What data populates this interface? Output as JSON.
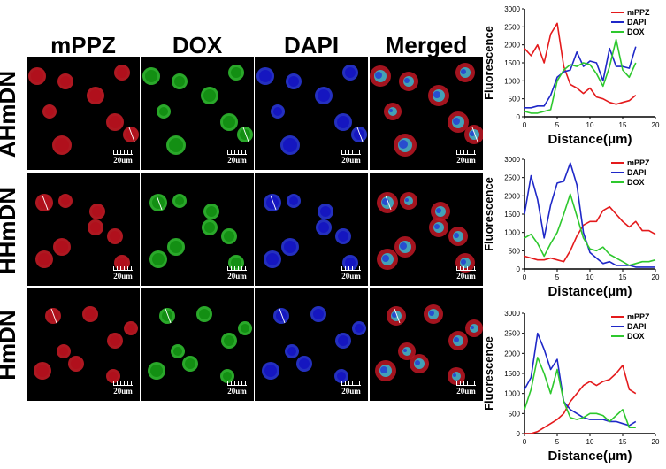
{
  "figure": {
    "columns": [
      "mPPZ",
      "DOX",
      "DAPI",
      "Merged"
    ],
    "rows": [
      "AHmDN",
      "HHmDN",
      "HmDN"
    ],
    "scale_bar_label": "20um"
  },
  "chart_data": [
    {
      "type": "line",
      "xlabel": "Distance(μm)",
      "ylabel": "Fluorescence",
      "xlim": [
        0,
        20
      ],
      "ylim": [
        0,
        3000
      ],
      "xticks": [
        0,
        5,
        10,
        15,
        20
      ],
      "yticks": [
        0,
        500,
        1000,
        1500,
        2000,
        2500,
        3000
      ],
      "legend": "top-right",
      "series": [
        {
          "name": "mPPZ",
          "color": "#e41a1c",
          "x": [
            0,
            1,
            2,
            3,
            4,
            5,
            6,
            7,
            8,
            9,
            10,
            11,
            12,
            13,
            14,
            15,
            16,
            17
          ],
          "y": [
            1900,
            1700,
            2000,
            1500,
            2300,
            2600,
            1400,
            900,
            800,
            650,
            800,
            550,
            500,
            400,
            350,
            400,
            450,
            600
          ]
        },
        {
          "name": "DAPI",
          "color": "#1f28c8",
          "x": [
            0,
            1,
            2,
            3,
            4,
            5,
            6,
            7,
            8,
            9,
            10,
            11,
            12,
            13,
            14,
            15,
            16,
            17
          ],
          "y": [
            250,
            250,
            300,
            300,
            600,
            1100,
            1250,
            1300,
            1800,
            1400,
            1550,
            1500,
            1000,
            1900,
            1400,
            1400,
            1350,
            1950
          ]
        },
        {
          "name": "DOX",
          "color": "#2ec82e",
          "x": [
            0,
            1,
            2,
            3,
            4,
            5,
            6,
            7,
            8,
            9,
            10,
            11,
            12,
            13,
            14,
            15,
            16,
            17
          ],
          "y": [
            150,
            100,
            100,
            150,
            200,
            1000,
            1300,
            1450,
            1400,
            1500,
            1450,
            1200,
            850,
            1400,
            2150,
            1300,
            1100,
            1500
          ]
        }
      ]
    },
    {
      "type": "line",
      "xlabel": "Distance(μm)",
      "ylabel": "Fluorescence",
      "xlim": [
        0,
        20
      ],
      "ylim": [
        0,
        3000
      ],
      "xticks": [
        0,
        5,
        10,
        15,
        20
      ],
      "yticks": [
        0,
        500,
        1000,
        1500,
        2000,
        2500,
        3000
      ],
      "legend": "top-right",
      "series": [
        {
          "name": "mPPZ",
          "color": "#e41a1c",
          "x": [
            0,
            1,
            2,
            3,
            4,
            5,
            6,
            7,
            8,
            9,
            10,
            11,
            12,
            13,
            14,
            15,
            16,
            17,
            18,
            19,
            20
          ],
          "y": [
            350,
            300,
            250,
            250,
            300,
            250,
            200,
            500,
            900,
            1200,
            1300,
            1300,
            1600,
            1700,
            1500,
            1300,
            1150,
            1300,
            1050,
            1050,
            950
          ]
        },
        {
          "name": "DAPI",
          "color": "#1f28c8",
          "x": [
            0,
            1,
            2,
            3,
            4,
            5,
            6,
            7,
            8,
            9,
            10,
            11,
            12,
            13,
            14,
            15,
            16,
            17,
            18,
            19,
            20
          ],
          "y": [
            1500,
            2550,
            1900,
            850,
            1750,
            2350,
            2400,
            2900,
            2300,
            1000,
            450,
            300,
            150,
            200,
            100,
            100,
            100,
            50,
            50,
            50,
            50
          ]
        },
        {
          "name": "DOX",
          "color": "#2ec82e",
          "x": [
            0,
            1,
            2,
            3,
            4,
            5,
            6,
            7,
            8,
            9,
            10,
            11,
            12,
            13,
            14,
            15,
            16,
            17,
            18,
            19,
            20
          ],
          "y": [
            850,
            950,
            700,
            350,
            700,
            1000,
            1500,
            2050,
            1450,
            850,
            550,
            500,
            600,
            400,
            300,
            200,
            100,
            150,
            200,
            200,
            250
          ]
        }
      ]
    },
    {
      "type": "line",
      "xlabel": "Distance(μm)",
      "ylabel": "Fluorescence",
      "xlim": [
        0,
        20
      ],
      "ylim": [
        0,
        3000
      ],
      "xticks": [
        0,
        5,
        10,
        15,
        20
      ],
      "yticks": [
        0,
        500,
        1000,
        1500,
        2000,
        2500,
        3000
      ],
      "legend": "top-right",
      "series": [
        {
          "name": "mPPZ",
          "color": "#e41a1c",
          "x": [
            0,
            1,
            2,
            3,
            4,
            5,
            6,
            7,
            8,
            9,
            10,
            11,
            12,
            13,
            14,
            15,
            16,
            17
          ],
          "y": [
            0,
            0,
            50,
            150,
            250,
            350,
            500,
            800,
            1000,
            1200,
            1300,
            1200,
            1300,
            1350,
            1500,
            1700,
            1100,
            1000
          ]
        },
        {
          "name": "DAPI",
          "color": "#1f28c8",
          "x": [
            0,
            1,
            2,
            3,
            4,
            5,
            6,
            7,
            8,
            9,
            10,
            11,
            12,
            13,
            14,
            15,
            16,
            17
          ],
          "y": [
            1100,
            1400,
            2500,
            2100,
            1600,
            1850,
            800,
            600,
            500,
            400,
            350,
            350,
            350,
            300,
            300,
            250,
            200,
            300
          ]
        },
        {
          "name": "DOX",
          "color": "#2ec82e",
          "x": [
            0,
            1,
            2,
            3,
            4,
            5,
            6,
            7,
            8,
            9,
            10,
            11,
            12,
            13,
            14,
            15,
            16,
            17
          ],
          "y": [
            600,
            1100,
            1900,
            1500,
            1000,
            1600,
            800,
            400,
            350,
            400,
            500,
            500,
            450,
            300,
            450,
            600,
            150,
            150
          ]
        }
      ]
    }
  ]
}
